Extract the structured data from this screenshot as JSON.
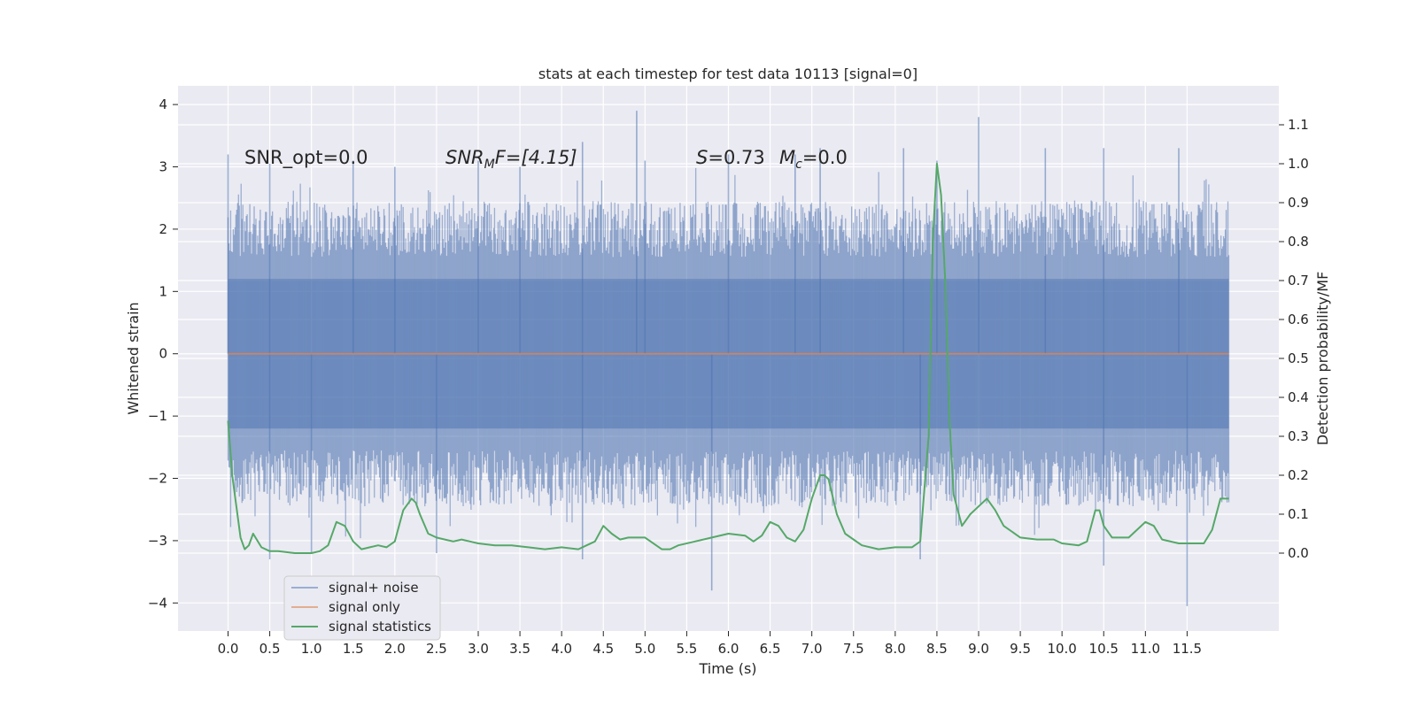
{
  "chart_data": {
    "type": "line",
    "title": "stats at each timestep for test data 10113 [signal=0]",
    "xlabel": "Time (s)",
    "ylabel": "Whitened strain",
    "y2label": "Detection probability/MF",
    "xlim": [
      -0.6,
      12.6
    ],
    "ylim": [
      -4.45,
      4.3
    ],
    "y2lim": [
      -0.2,
      1.2
    ],
    "x_ticks": [
      "0.0",
      "0.5",
      "1.0",
      "1.5",
      "2.0",
      "2.5",
      "3.0",
      "3.5",
      "4.0",
      "4.5",
      "5.0",
      "5.5",
      "6.0",
      "6.5",
      "7.0",
      "7.5",
      "8.0",
      "8.5",
      "9.0",
      "9.5",
      "10.0",
      "10.5",
      "11.0",
      "11.5"
    ],
    "y_ticks": [
      "4",
      "3",
      "2",
      "1",
      "0",
      "−1",
      "−2",
      "−3",
      "−4"
    ],
    "y2_ticks": [
      "1.1",
      "1.0",
      "0.9",
      "0.8",
      "0.7",
      "0.6",
      "0.5",
      "0.4",
      "0.3",
      "0.2",
      "0.1",
      "0.0"
    ],
    "grid": true,
    "legend_position": "lower-left",
    "annotations": {
      "snr_opt": "SNR_opt=0.0",
      "snr_mf_base": "SNR",
      "snr_mf_sub": "M",
      "snr_mf_rest": "F=[4.15]",
      "s_italic": "S",
      "s_value": "=0.73",
      "mc_italic": "M",
      "mc_sub": "c",
      "mc_value": "=0.0"
    },
    "series": [
      {
        "name": "signal+ noise",
        "color": "#4c72b0",
        "axis": "left",
        "description_range": [
          0.0,
          12.0
        ],
        "peaks": [
          {
            "x": 0.0,
            "y": 3.2
          },
          {
            "x": 0.5,
            "y": 3.05
          },
          {
            "x": 1.5,
            "y": 3.1
          },
          {
            "x": 2.0,
            "y": 3.0
          },
          {
            "x": 3.0,
            "y": 3.1
          },
          {
            "x": 3.5,
            "y": 3.0
          },
          {
            "x": 4.25,
            "y": 3.4
          },
          {
            "x": 4.9,
            "y": 3.9
          },
          {
            "x": 5.0,
            "y": 3.1
          },
          {
            "x": 6.0,
            "y": 3.2
          },
          {
            "x": 6.8,
            "y": 3.2
          },
          {
            "x": 7.1,
            "y": 3.3
          },
          {
            "x": 8.1,
            "y": 3.3
          },
          {
            "x": 8.5,
            "y": 3.1
          },
          {
            "x": 9.0,
            "y": 3.8
          },
          {
            "x": 9.8,
            "y": 3.3
          },
          {
            "x": 10.5,
            "y": 3.3
          },
          {
            "x": 11.4,
            "y": 3.3
          }
        ],
        "troughs": [
          {
            "x": 0.5,
            "y": -3.3
          },
          {
            "x": 1.0,
            "y": -3.2
          },
          {
            "x": 2.5,
            "y": -3.2
          },
          {
            "x": 4.25,
            "y": -3.3
          },
          {
            "x": 5.8,
            "y": -3.8
          },
          {
            "x": 8.3,
            "y": -3.3
          },
          {
            "x": 10.5,
            "y": -3.4
          },
          {
            "x": 11.5,
            "y": -4.05
          }
        ]
      },
      {
        "name": "signal only",
        "color": "#dd8452",
        "axis": "left",
        "x": [
          0.0,
          12.0
        ],
        "y": [
          0.0,
          0.0
        ]
      },
      {
        "name": "signal statistics",
        "color": "#55a868",
        "axis": "right",
        "x": [
          0.0,
          0.05,
          0.1,
          0.15,
          0.2,
          0.25,
          0.3,
          0.4,
          0.5,
          0.6,
          0.8,
          1.0,
          1.1,
          1.2,
          1.3,
          1.4,
          1.5,
          1.6,
          1.7,
          1.8,
          1.9,
          2.0,
          2.1,
          2.2,
          2.25,
          2.3,
          2.4,
          2.5,
          2.6,
          2.7,
          2.8,
          2.9,
          3.0,
          3.2,
          3.4,
          3.6,
          3.8,
          4.0,
          4.2,
          4.3,
          4.4,
          4.5,
          4.6,
          4.7,
          4.8,
          5.0,
          5.2,
          5.3,
          5.4,
          5.6,
          5.8,
          6.0,
          6.2,
          6.3,
          6.4,
          6.5,
          6.6,
          6.7,
          6.8,
          6.9,
          7.0,
          7.1,
          7.15,
          7.2,
          7.3,
          7.4,
          7.6,
          7.8,
          8.0,
          8.2,
          8.3,
          8.4,
          8.45,
          8.5,
          8.55,
          8.6,
          8.65,
          8.7,
          8.8,
          8.9,
          9.0,
          9.1,
          9.2,
          9.3,
          9.5,
          9.7,
          9.9,
          10.0,
          10.2,
          10.3,
          10.4,
          10.45,
          10.5,
          10.6,
          10.8,
          10.9,
          11.0,
          11.1,
          11.2,
          11.4,
          11.6,
          11.7,
          11.8,
          11.9,
          12.0
        ],
        "y": [
          0.34,
          0.2,
          0.12,
          0.04,
          0.01,
          0.02,
          0.05,
          0.015,
          0.005,
          0.005,
          0.0,
          0.0,
          0.005,
          0.02,
          0.08,
          0.07,
          0.03,
          0.01,
          0.015,
          0.02,
          0.015,
          0.03,
          0.11,
          0.14,
          0.13,
          0.1,
          0.05,
          0.04,
          0.035,
          0.03,
          0.035,
          0.03,
          0.025,
          0.02,
          0.02,
          0.015,
          0.01,
          0.015,
          0.01,
          0.02,
          0.03,
          0.07,
          0.05,
          0.035,
          0.04,
          0.04,
          0.01,
          0.01,
          0.02,
          0.03,
          0.04,
          0.05,
          0.045,
          0.03,
          0.045,
          0.08,
          0.07,
          0.04,
          0.03,
          0.06,
          0.14,
          0.2,
          0.2,
          0.19,
          0.1,
          0.05,
          0.02,
          0.01,
          0.015,
          0.015,
          0.03,
          0.3,
          0.8,
          1.0,
          0.92,
          0.7,
          0.35,
          0.15,
          0.07,
          0.1,
          0.12,
          0.14,
          0.11,
          0.07,
          0.04,
          0.035,
          0.035,
          0.025,
          0.02,
          0.03,
          0.11,
          0.11,
          0.07,
          0.04,
          0.04,
          0.06,
          0.08,
          0.07,
          0.035,
          0.025,
          0.025,
          0.025,
          0.06,
          0.14,
          0.14
        ]
      }
    ]
  }
}
